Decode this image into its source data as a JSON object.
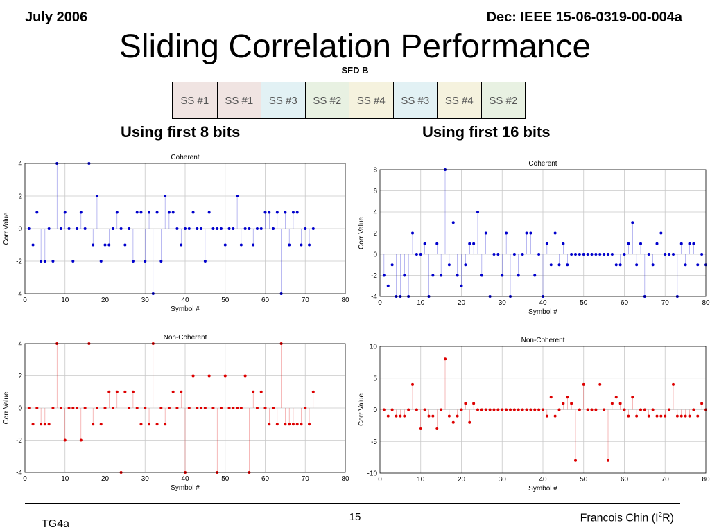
{
  "header": {
    "left": "July 2006",
    "right": "Dec: IEEE 15-06-0319-00-004a"
  },
  "title": "Sliding Correlation Performance",
  "sfd": {
    "label": "SFD B",
    "cells": [
      {
        "text": "SS #1",
        "color": "#f0e4e2"
      },
      {
        "text": "SS #1",
        "color": "#f0e4e2"
      },
      {
        "text": "SS #3",
        "color": "#e2f1f4"
      },
      {
        "text": "SS #2",
        "color": "#e8f1e2"
      },
      {
        "text": "SS #4",
        "color": "#f5f2de"
      },
      {
        "text": "SS #3",
        "color": "#e2f1f4"
      },
      {
        "text": "SS #4",
        "color": "#f5f2de"
      },
      {
        "text": "SS #2",
        "color": "#e8f1e2"
      }
    ]
  },
  "subtitles": {
    "left": "Using first 8 bits",
    "right": "Using first 16 bits"
  },
  "footer": {
    "left": "TG4a",
    "page": "15",
    "author": "Francois Chin (I",
    "author_sup": "2",
    "author_end": "R)"
  },
  "chart_data": [
    {
      "type": "scatter",
      "title": "Coherent",
      "xlabel": "Symbol #",
      "ylabel": "Corr Value",
      "xlim": [
        0,
        80
      ],
      "ylim": [
        -4,
        4
      ],
      "xticks": [
        0,
        10,
        20,
        30,
        40,
        50,
        60,
        70,
        80
      ],
      "yticks": [
        -4,
        -2,
        0,
        2,
        4
      ],
      "color": "#0000cc",
      "x": [
        1,
        2,
        3,
        4,
        5,
        6,
        7,
        8,
        9,
        10,
        11,
        12,
        13,
        14,
        15,
        16,
        17,
        18,
        19,
        20,
        21,
        22,
        23,
        24,
        25,
        26,
        27,
        28,
        29,
        30,
        31,
        32,
        33,
        34,
        35,
        36,
        37,
        38,
        39,
        40,
        41,
        42,
        43,
        44,
        45,
        46,
        47,
        48,
        49,
        50,
        51,
        52,
        53,
        54,
        55,
        56,
        57,
        58,
        59,
        60,
        61,
        62,
        63,
        64,
        65,
        66,
        67,
        68,
        69,
        70,
        71,
        72
      ],
      "y": [
        0,
        -1,
        1,
        -2,
        -2,
        0,
        -2,
        4,
        0,
        1,
        0,
        -2,
        0,
        1,
        0,
        4,
        -1,
        2,
        -2,
        -1,
        -1,
        0,
        1,
        0,
        -1,
        0,
        -2,
        1,
        1,
        -2,
        1,
        -4,
        1,
        -2,
        2,
        1,
        1,
        0,
        -1,
        0,
        0,
        1,
        0,
        0,
        -2,
        1,
        0,
        0,
        0,
        -1,
        0,
        0,
        2,
        -1,
        0,
        0,
        -1,
        0,
        0,
        1,
        1,
        0,
        1,
        -4,
        1,
        -1,
        1,
        1,
        -1,
        0,
        -1,
        0
      ]
    },
    {
      "type": "scatter",
      "title": "Coherent",
      "xlabel": "Symbol #",
      "ylabel": "Corr Value",
      "xlim": [
        0,
        80
      ],
      "ylim": [
        -4,
        8
      ],
      "xticks": [
        0,
        10,
        20,
        30,
        40,
        50,
        60,
        70,
        80
      ],
      "yticks": [
        -4,
        -2,
        0,
        2,
        4,
        6,
        8
      ],
      "color": "#0000cc",
      "x": [
        1,
        2,
        3,
        4,
        5,
        6,
        7,
        8,
        9,
        10,
        11,
        12,
        13,
        14,
        15,
        16,
        17,
        18,
        19,
        20,
        21,
        22,
        23,
        24,
        25,
        26,
        27,
        28,
        29,
        30,
        31,
        32,
        33,
        34,
        35,
        36,
        37,
        38,
        39,
        40,
        41,
        42,
        43,
        44,
        45,
        46,
        47,
        48,
        49,
        50,
        51,
        52,
        53,
        54,
        55,
        56,
        57,
        58,
        59,
        60,
        61,
        62,
        63,
        64,
        65,
        66,
        67,
        68,
        69,
        70,
        71,
        72,
        73,
        74,
        75,
        76,
        77,
        78,
        79,
        80
      ],
      "y": [
        -2,
        -3,
        -1,
        -4,
        -4,
        -2,
        -4,
        2,
        0,
        0,
        1,
        -4,
        -2,
        1,
        -2,
        8,
        -1,
        3,
        -2,
        -3,
        -1,
        1,
        1,
        4,
        -2,
        2,
        -4,
        0,
        0,
        -2,
        2,
        -4,
        0,
        -2,
        0,
        2,
        2,
        -2,
        0,
        -4,
        1,
        -1,
        2,
        -1,
        1,
        -1,
        0,
        0,
        0,
        0,
        0,
        0,
        0,
        0,
        0,
        0,
        0,
        -1,
        -1,
        0,
        1,
        3,
        -1,
        1,
        -4,
        0,
        -1,
        1,
        2,
        0,
        0,
        0,
        -4,
        1,
        -1,
        1,
        1,
        -1,
        0,
        -1
      ]
    },
    {
      "type": "scatter",
      "title": "Non-Coherent",
      "xlabel": "Symbol #",
      "ylabel": "Corr Value",
      "xlim": [
        0,
        80
      ],
      "ylim": [
        -4,
        4
      ],
      "xticks": [
        0,
        10,
        20,
        30,
        40,
        50,
        60,
        70,
        80
      ],
      "yticks": [
        -4,
        -2,
        0,
        2,
        4
      ],
      "color": "#dd0000",
      "x": [
        1,
        2,
        3,
        4,
        5,
        6,
        7,
        8,
        9,
        10,
        11,
        12,
        13,
        14,
        15,
        16,
        17,
        18,
        19,
        20,
        21,
        22,
        23,
        24,
        25,
        26,
        27,
        28,
        29,
        30,
        31,
        32,
        33,
        34,
        35,
        36,
        37,
        38,
        39,
        40,
        41,
        42,
        43,
        44,
        45,
        46,
        47,
        48,
        49,
        50,
        51,
        52,
        53,
        54,
        55,
        56,
        57,
        58,
        59,
        60,
        61,
        62,
        63,
        64,
        65,
        66,
        67,
        68,
        69,
        70,
        71,
        72
      ],
      "y": [
        0,
        -1,
        0,
        -1,
        -1,
        -1,
        0,
        4,
        0,
        -2,
        0,
        0,
        0,
        -2,
        0,
        4,
        -1,
        0,
        -1,
        0,
        1,
        0,
        1,
        -4,
        1,
        0,
        1,
        0,
        -1,
        0,
        -1,
        4,
        -1,
        0,
        -1,
        0,
        1,
        0,
        1,
        -4,
        0,
        2,
        0,
        0,
        0,
        2,
        0,
        -4,
        0,
        2,
        0,
        0,
        0,
        0,
        2,
        -4,
        1,
        0,
        1,
        0,
        -1,
        0,
        -1,
        4,
        -1,
        -1,
        -1,
        -1,
        -1,
        0,
        -1,
        1
      ]
    },
    {
      "type": "scatter",
      "title": "Non-Coherent",
      "xlabel": "Symbol #",
      "ylabel": "Corr Value",
      "xlim": [
        0,
        80
      ],
      "ylim": [
        -10,
        10
      ],
      "xticks": [
        0,
        10,
        20,
        30,
        40,
        50,
        60,
        70,
        80
      ],
      "yticks": [
        -10,
        -5,
        0,
        5,
        10
      ],
      "color": "#dd0000",
      "x": [
        1,
        2,
        3,
        4,
        5,
        6,
        7,
        8,
        9,
        10,
        11,
        12,
        13,
        14,
        15,
        16,
        17,
        18,
        19,
        20,
        21,
        22,
        23,
        24,
        25,
        26,
        27,
        28,
        29,
        30,
        31,
        32,
        33,
        34,
        35,
        36,
        37,
        38,
        39,
        40,
        41,
        42,
        43,
        44,
        45,
        46,
        47,
        48,
        49,
        50,
        51,
        52,
        53,
        54,
        55,
        56,
        57,
        58,
        59,
        60,
        61,
        62,
        63,
        64,
        65,
        66,
        67,
        68,
        69,
        70,
        71,
        72,
        73,
        74,
        75,
        76,
        77,
        78,
        79,
        80
      ],
      "y": [
        0,
        -1,
        0,
        -1,
        -1,
        -1,
        0,
        4,
        0,
        -3,
        0,
        -1,
        -1,
        -3,
        0,
        8,
        -1,
        -2,
        -1,
        0,
        1,
        -2,
        1,
        0,
        0,
        0,
        0,
        0,
        0,
        0,
        0,
        0,
        0,
        0,
        0,
        0,
        0,
        0,
        0,
        0,
        -1,
        2,
        -1,
        0,
        1,
        2,
        1,
        -8,
        0,
        4,
        0,
        0,
        0,
        4,
        0,
        -8,
        1,
        2,
        1,
        0,
        -1,
        2,
        -1,
        0,
        0,
        -1,
        0,
        -1,
        -1,
        -1,
        0,
        4,
        -1,
        -1,
        -1,
        -1,
        0,
        -1,
        1,
        0
      ]
    }
  ]
}
